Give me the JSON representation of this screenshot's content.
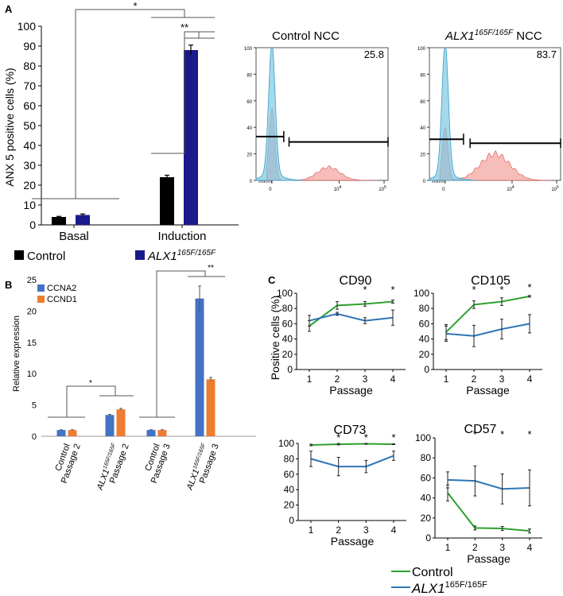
{
  "panels": {
    "a": "A",
    "b": "B",
    "c": "C"
  },
  "colors": {
    "control_bar": "#000000",
    "alx_bar": "#1a1a8c",
    "ccna2": "#4472c4",
    "ccnd1": "#ed7d31",
    "c_control": "#2ca02c",
    "c_alx": "#2e75b6",
    "flow_blue": "#7ec8e3",
    "flow_red": "#f4a7a0"
  },
  "chart_data": [
    {
      "id": "a",
      "type": "bar",
      "ylabel": "ANX 5 positive cells (%)",
      "ylim": [
        0,
        100
      ],
      "yticks": [
        0,
        10,
        20,
        30,
        40,
        50,
        60,
        70,
        80,
        90,
        100
      ],
      "categories": [
        "Basal",
        "Induction"
      ],
      "series": [
        {
          "name": "Control",
          "values": [
            4,
            24
          ],
          "errors": [
            0.3,
            1
          ]
        },
        {
          "name": "ALX1",
          "name_sup": "165F/165F",
          "values": [
            5,
            88
          ],
          "errors": [
            0.5,
            2.5
          ]
        }
      ],
      "significance": [
        "*",
        "**"
      ]
    },
    {
      "id": "flow-control",
      "type": "area",
      "title": "Control NCC",
      "value_label": "25.8",
      "y_ticks": [
        "0",
        "20",
        "40",
        "60",
        "80",
        "100"
      ],
      "x_ticks": [
        "0",
        "10",
        "10"
      ],
      "x_tick_exp": [
        "",
        "4",
        "5"
      ]
    },
    {
      "id": "flow-alx",
      "type": "area",
      "title_italic": "ALX1",
      "title_sup": "165F/165F",
      "title_rest": " NCC",
      "value_label": "83.7",
      "y_ticks": [
        "0",
        "20",
        "40",
        "60",
        "80",
        "100"
      ],
      "x_ticks": [
        "0",
        "10",
        "10"
      ],
      "x_tick_exp": [
        "",
        "4",
        "5"
      ]
    },
    {
      "id": "b",
      "type": "bar",
      "ylabel": "Relative expression",
      "ylim": [
        0,
        25
      ],
      "yticks": [
        0,
        5,
        10,
        15,
        20,
        25
      ],
      "categories": [
        {
          "line1": "Control",
          "line2": "Passage 2",
          "italic": false
        },
        {
          "line1": "ALX1",
          "line1_sup": "165F/165F",
          "line2": "Passage 2",
          "italic": true
        },
        {
          "line1": "Control",
          "line2": "Passage 3",
          "italic": false
        },
        {
          "line1": "ALX1",
          "line1_sup": "165F/165F",
          "line2": "Passage 3",
          "italic": true
        }
      ],
      "series": [
        {
          "name": "CCNA2",
          "values": [
            1,
            3.4,
            1,
            22
          ],
          "errors": [
            0.05,
            0.1,
            0.05,
            2
          ]
        },
        {
          "name": "CCND1",
          "values": [
            1,
            4.3,
            1,
            9.1
          ],
          "errors": [
            0.05,
            0.15,
            0.05,
            0.3
          ]
        }
      ],
      "significance": [
        "*",
        "**"
      ]
    },
    {
      "id": "c-cd90",
      "type": "line",
      "title": "CD90",
      "ylabel": "Positive cells (%)",
      "xlabel": "Passage",
      "ylim": [
        0,
        100
      ],
      "yticks": [
        0,
        20,
        40,
        60,
        80,
        100
      ],
      "x": [
        1,
        2,
        3,
        4
      ],
      "series": [
        {
          "name": "Control",
          "values": [
            57,
            84,
            86,
            89
          ],
          "errors": [
            7,
            5,
            3,
            2
          ]
        },
        {
          "name": "ALX1",
          "values": [
            64,
            73,
            64,
            68
          ],
          "errors": [
            7,
            2,
            4,
            10
          ]
        }
      ],
      "stars": [
        "",
        "",
        "*",
        "*"
      ]
    },
    {
      "id": "c-cd105",
      "type": "line",
      "title": "CD105",
      "xlabel": "Passage",
      "ylim": [
        0,
        100
      ],
      "yticks": [
        0,
        20,
        40,
        60,
        80,
        100
      ],
      "x": [
        1,
        2,
        3,
        4
      ],
      "series": [
        {
          "name": "Control",
          "values": [
            49,
            85,
            89,
            96
          ],
          "errors": [
            10,
            5,
            5,
            1
          ]
        },
        {
          "name": "ALX1",
          "values": [
            47,
            44,
            53,
            60
          ],
          "errors": [
            10,
            14,
            13,
            12
          ]
        }
      ],
      "stars": [
        "",
        "*",
        "*",
        "*"
      ]
    },
    {
      "id": "c-cd73",
      "type": "line",
      "title": "CD73",
      "xlabel": "Passage",
      "ylim": [
        0,
        100
      ],
      "yticks": [
        0,
        20,
        40,
        60,
        80,
        100
      ],
      "x": [
        1,
        2,
        3,
        4
      ],
      "series": [
        {
          "name": "Control",
          "values": [
            98,
            99,
            99.5,
            99
          ],
          "errors": [
            1,
            1,
            0.5,
            0.5
          ]
        },
        {
          "name": "ALX1",
          "values": [
            80,
            70,
            70,
            84
          ],
          "errors": [
            10,
            12,
            8,
            6
          ]
        }
      ],
      "stars": [
        "",
        "*",
        "*",
        "*"
      ]
    },
    {
      "id": "c-cd57",
      "type": "line",
      "title": "CD57",
      "xlabel": "Passage",
      "ylim": [
        0,
        100
      ],
      "yticks": [
        0,
        20,
        40,
        60,
        80,
        100
      ],
      "x": [
        1,
        2,
        3,
        4
      ],
      "series": [
        {
          "name": "Control",
          "values": [
            45,
            10,
            9.5,
            7
          ],
          "errors": [
            8,
            2,
            2,
            2
          ]
        },
        {
          "name": "ALX1",
          "values": [
            58,
            57,
            49,
            50
          ],
          "errors": [
            8,
            15,
            15,
            18
          ]
        }
      ],
      "stars": [
        "",
        "*",
        "*",
        "*"
      ]
    }
  ],
  "legend_c": {
    "control": "Control",
    "alx_italic": "ALX1",
    "alx_sup": "165F/165F"
  }
}
